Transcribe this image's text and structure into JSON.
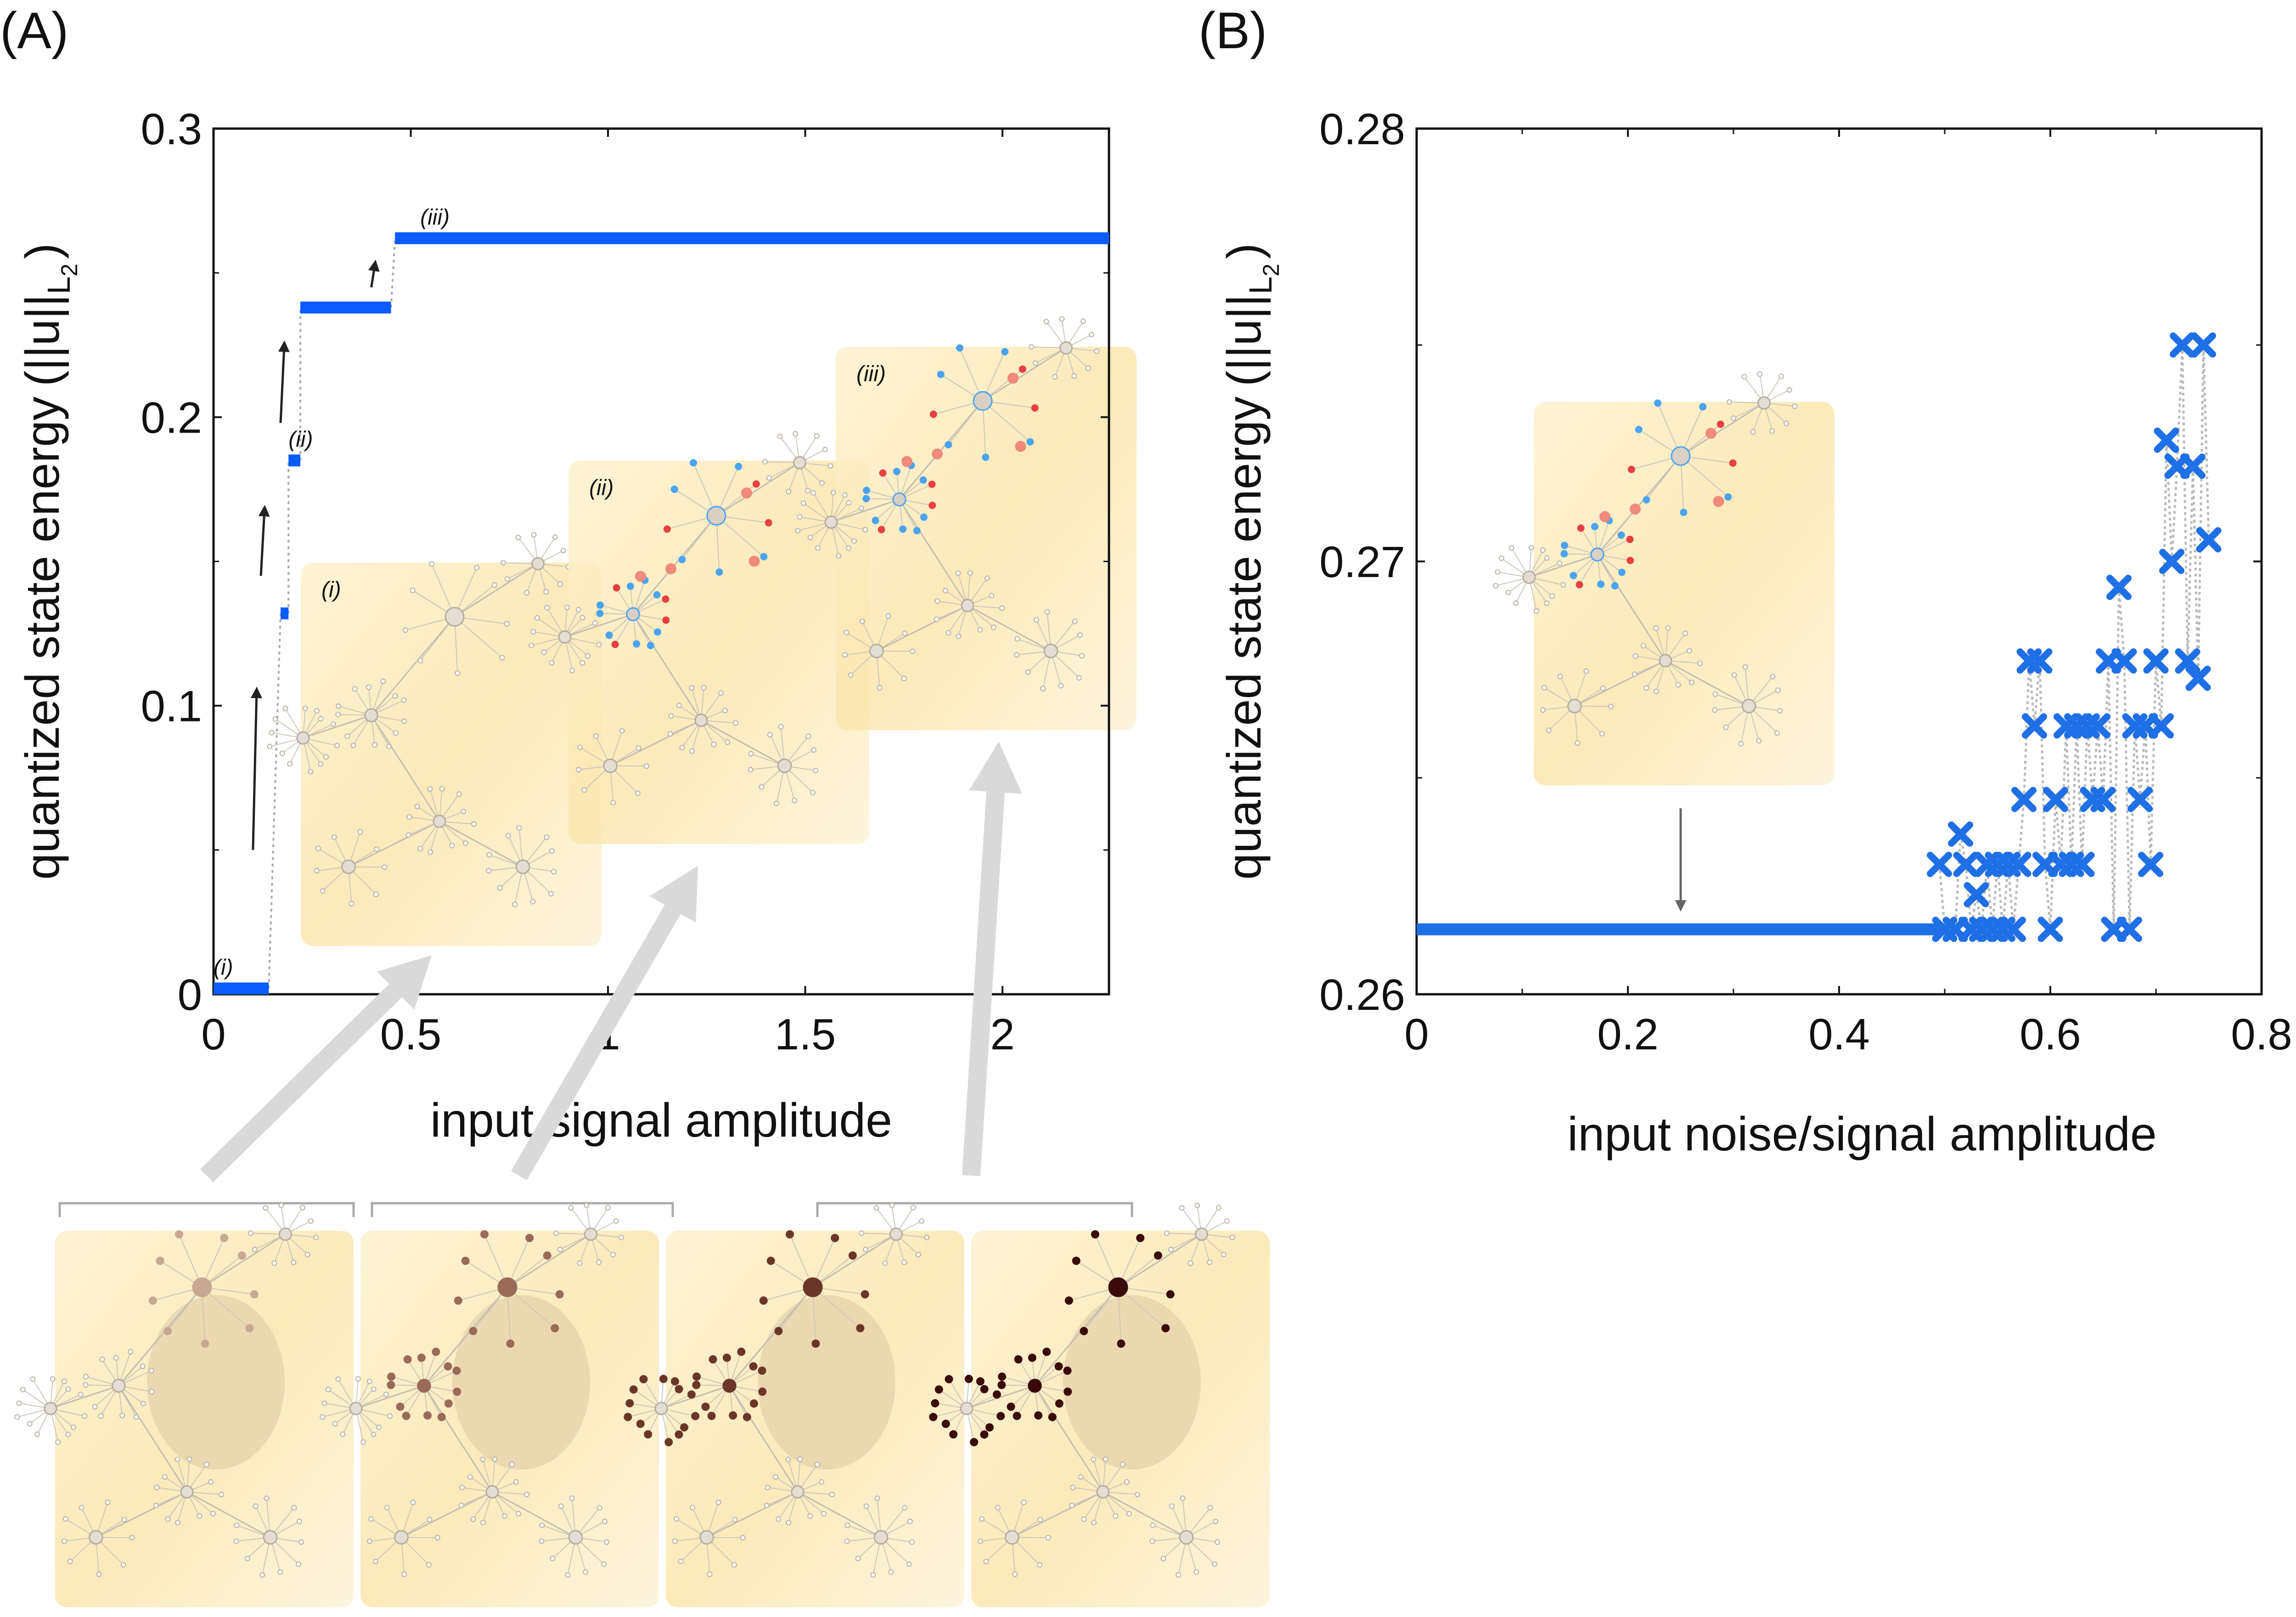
{
  "panels": {
    "a": "(A)",
    "b": "(B)"
  },
  "chart_data": [
    {
      "type": "line",
      "title": "",
      "xlabel": "input signal amplitude",
      "ylabel": "quantized state energy",
      "ylabel_norm": "(||u||",
      "ylabel_sub": "L",
      "ylabel_subsub": "2",
      "ylabel_close": ")",
      "xlim": [
        0,
        2.27
      ],
      "ylim": [
        0,
        0.3
      ],
      "xticks": [
        "0",
        "0.5",
        "1",
        "1.5",
        "2"
      ],
      "xtick_values": [
        0,
        0.5,
        1,
        1.5,
        2
      ],
      "yticks": [
        "0",
        "0.1",
        "0.2",
        "0.3"
      ],
      "ytick_values": [
        0,
        0.1,
        0.2,
        0.3
      ],
      "series": [
        {
          "name": "quantized state energy",
          "color": "#0a5cff",
          "segments": [
            {
              "x0": 0.0,
              "x1": 0.14,
              "y": 0.002,
              "label": "(i)"
            },
            {
              "x0": 0.17,
              "x1": 0.19,
              "y": 0.132
            },
            {
              "x0": 0.19,
              "x1": 0.22,
              "y": 0.185,
              "label": "(ii)"
            },
            {
              "x0": 0.22,
              "x1": 0.45,
              "y": 0.238
            },
            {
              "x0": 0.46,
              "x1": 2.27,
              "y": 0.262,
              "label": "(iii)"
            }
          ]
        }
      ],
      "jumps": [
        {
          "x": 0.1,
          "y0": 0.05,
          "y1": 0.105
        },
        {
          "x": 0.12,
          "y0": 0.145,
          "y1": 0.168
        },
        {
          "x": 0.17,
          "y0": 0.198,
          "y1": 0.225
        },
        {
          "x": 0.4,
          "y0": 0.245,
          "y1": 0.253
        }
      ],
      "insets": [
        {
          "label": "(i)"
        },
        {
          "label": "(ii)"
        },
        {
          "label": "(iii)"
        }
      ]
    },
    {
      "type": "scatter",
      "title": "",
      "xlabel": "input noise/signal amplitude",
      "ylabel": "quantized state energy",
      "ylabel_norm": "(||u||",
      "ylabel_sub": "L",
      "ylabel_subsub": "2",
      "ylabel_close": ")",
      "xlim": [
        0,
        0.8
      ],
      "ylim": [
        0.26,
        0.28
      ],
      "xticks": [
        "0",
        "0.2",
        "0.4",
        "0.6",
        "0.8"
      ],
      "xtick_values": [
        0,
        0.2,
        0.4,
        0.6,
        0.8
      ],
      "yticks": [
        "0.26",
        "0.27",
        "0.28"
      ],
      "ytick_values": [
        0.26,
        0.27,
        0.28
      ],
      "baseline": {
        "x0": 0.0,
        "x1": 0.5,
        "y": 0.2615
      },
      "series": [
        {
          "name": "quantized state energy",
          "color": "#1f6fe6",
          "x": [
            0.495,
            0.5,
            0.51,
            0.515,
            0.52,
            0.525,
            0.53,
            0.535,
            0.54,
            0.545,
            0.55,
            0.555,
            0.56,
            0.565,
            0.57,
            0.575,
            0.58,
            0.585,
            0.59,
            0.595,
            0.6,
            0.605,
            0.61,
            0.615,
            0.62,
            0.625,
            0.63,
            0.635,
            0.64,
            0.645,
            0.65,
            0.655,
            0.66,
            0.665,
            0.67,
            0.675,
            0.68,
            0.685,
            0.69,
            0.695,
            0.7,
            0.705,
            0.71,
            0.715,
            0.72,
            0.725,
            0.73,
            0.735,
            0.74,
            0.745,
            0.75
          ],
          "y": [
            0.263,
            0.2615,
            0.2615,
            0.2637,
            0.263,
            0.2615,
            0.2623,
            0.2615,
            0.263,
            0.2615,
            0.263,
            0.2615,
            0.263,
            0.2615,
            0.263,
            0.2645,
            0.2677,
            0.2662,
            0.2677,
            0.263,
            0.2615,
            0.2645,
            0.263,
            0.2662,
            0.263,
            0.2662,
            0.263,
            0.2662,
            0.2645,
            0.2662,
            0.2645,
            0.2677,
            0.2615,
            0.2694,
            0.2677,
            0.2615,
            0.2662,
            0.2645,
            0.2662,
            0.263,
            0.2677,
            0.2662,
            0.2728,
            0.27,
            0.2722,
            0.275,
            0.2677,
            0.2722,
            0.2673,
            0.275,
            0.2705
          ]
        }
      ],
      "arrow_x": 0.25,
      "inset": true
    }
  ],
  "colors": {
    "line_blue": "#0a5cff",
    "marker_blue": "#1f6fe6",
    "inset_fill": "#fbe9b5",
    "connector": "#b8b8b8",
    "node_gray": "#c8c2b8",
    "node_blue": "#4aa3f0",
    "node_red": "#e84040",
    "node_salmon": "#f08a7a",
    "node_brown1": "#c8a892",
    "node_brown2": "#9a6a58",
    "node_brown3": "#6b3628",
    "node_brown4": "#3a0a08"
  },
  "bottom_panels": [
    {
      "name": "state-1",
      "intensity": 1
    },
    {
      "name": "state-2",
      "intensity": 2
    },
    {
      "name": "state-3",
      "intensity": 3
    },
    {
      "name": "state-4",
      "intensity": 4
    }
  ]
}
